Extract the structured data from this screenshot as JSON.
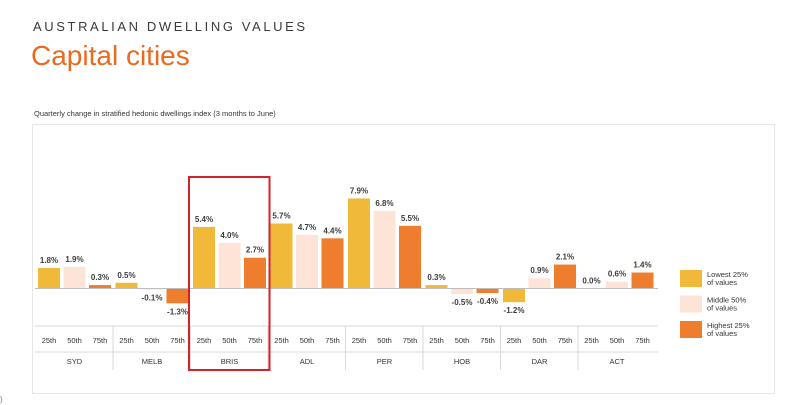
{
  "header": {
    "kicker": "AUSTRALIAN DWELLING VALUES",
    "title": "Capital cities",
    "corner_mark": ")"
  },
  "chart_data": {
    "type": "bar",
    "title": "Quarterly change in stratified hedonic dwellings index (3 months to June)",
    "xlabel": "",
    "ylabel": "",
    "ylim": [
      -1.6,
      8.5
    ],
    "grid": false,
    "legend_position": "right",
    "highlighted_category": "BRIS",
    "tiers": [
      "25th",
      "50th",
      "75th"
    ],
    "categories": [
      "SYD",
      "MELB",
      "BRIS",
      "ADL",
      "PER",
      "HOB",
      "DAR",
      "ACT"
    ],
    "series": [
      {
        "name": "Lowest 25% of values",
        "color": "#f0b93a",
        "values": [
          1.8,
          0.5,
          5.4,
          5.7,
          7.9,
          0.3,
          -1.2,
          0.0
        ],
        "labels": [
          "1.8%",
          "0.5%",
          "5.4%",
          "5.7%",
          "7.9%",
          "0.3%",
          "-1.2%",
          "0.0%"
        ]
      },
      {
        "name": "Middle 50% of values",
        "color": "#fde4d6",
        "values": [
          1.9,
          -0.1,
          4.0,
          4.7,
          6.8,
          -0.5,
          0.9,
          0.6
        ],
        "labels": [
          "1.9%",
          "-0.1%",
          "4.0%",
          "4.7%",
          "6.8%",
          "-0.5%",
          "0.9%",
          "0.6%"
        ]
      },
      {
        "name": "Highest 25% of values",
        "color": "#ef7d2e",
        "values": [
          0.3,
          -1.3,
          2.7,
          4.4,
          5.5,
          -0.4,
          2.1,
          1.4
        ],
        "labels": [
          "0.3%",
          "-1.3%",
          "2.7%",
          "4.4%",
          "5.5%",
          "-0.4%",
          "2.1%",
          "1.4%"
        ]
      }
    ],
    "legend": [
      {
        "line1": "Lowest 25%",
        "line2": "of values",
        "color": "#f0b93a"
      },
      {
        "line1": "Middle 50%",
        "line2": "of values",
        "color": "#fde4d6"
      },
      {
        "line1": "Highest 25%",
        "line2": "of values",
        "color": "#ef7d2e"
      }
    ],
    "highlight_color": "#d3232a",
    "axis_color": "#bdbdbd"
  }
}
